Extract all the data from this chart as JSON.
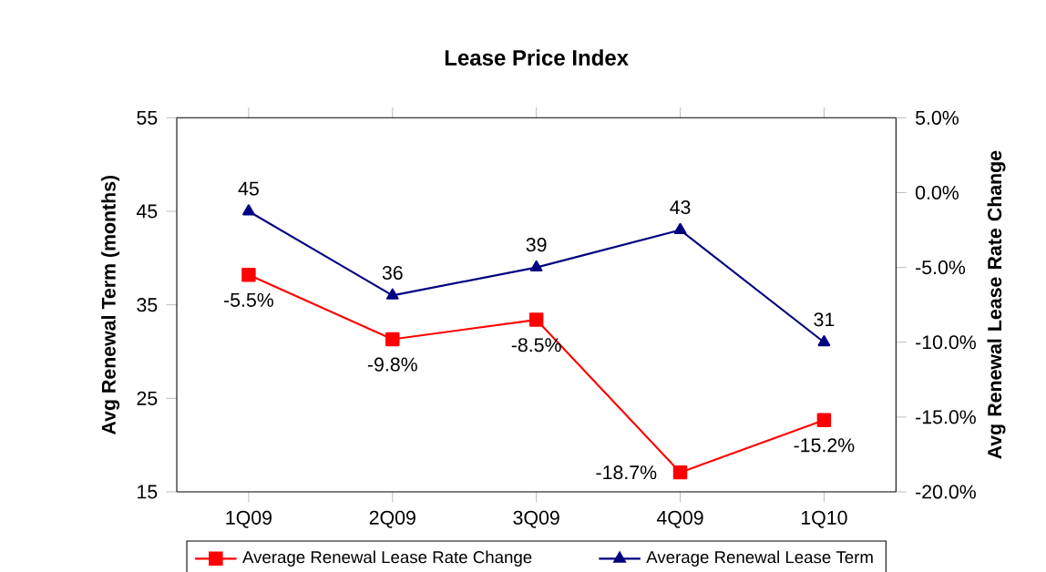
{
  "chart_data": {
    "type": "line",
    "title": "Lease Price Index",
    "ylabel": "Avg Renewal Term (months)",
    "y2label": "Avg Renewal Lease Rate Change",
    "categories": [
      "1Q09",
      "2Q09",
      "3Q09",
      "4Q09",
      "1Q10"
    ],
    "series": [
      {
        "name": "Average Renewal Lease Rate Change",
        "color": "#ff0000",
        "marker": "square",
        "axis": "y2",
        "values": [
          -5.5,
          -9.8,
          -8.5,
          -18.7,
          -15.2
        ],
        "value_labels": [
          "-5.5%",
          "-9.8%",
          "-8.5%",
          "-18.7%",
          "-15.2%"
        ]
      },
      {
        "name": "Average Renewal Lease Term",
        "color": "#000080",
        "marker": "triangle",
        "values": [
          45,
          36,
          39,
          43,
          31
        ],
        "value_labels": [
          "45",
          "36",
          "39",
          "43",
          "31"
        ]
      }
    ],
    "ylim": [
      15,
      55
    ],
    "yticks": [
      15,
      25,
      35,
      45,
      55
    ],
    "y2lim": [
      -20,
      5
    ],
    "y2ticks": [
      {
        "value": -20,
        "label": "-20.0%"
      },
      {
        "value": -15,
        "label": "-15.0%"
      },
      {
        "value": -10,
        "label": "-10.0%"
      },
      {
        "value": -5,
        "label": "-5.0%"
      },
      {
        "value": 0,
        "label": "0.0%"
      },
      {
        "value": 5,
        "label": "5.0%"
      }
    ],
    "legend": "bottom",
    "grid": false
  }
}
